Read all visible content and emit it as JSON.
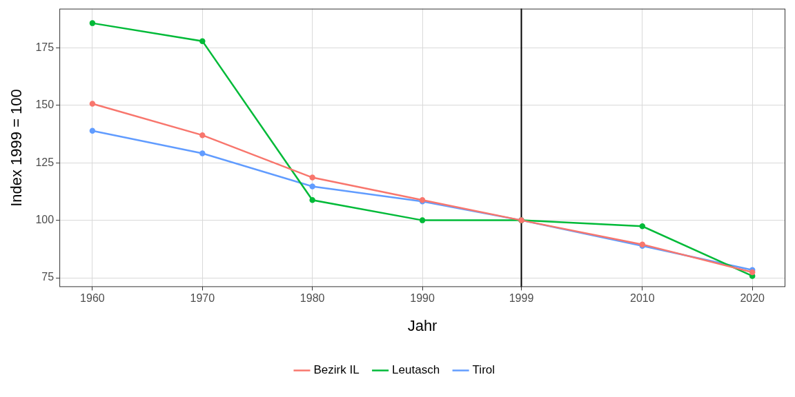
{
  "chart_data": {
    "type": "line",
    "x_label": "Jahr",
    "y_label": "Index 1999 = 100",
    "x": [
      1960,
      1970,
      1980,
      1990,
      1999,
      2010,
      2020
    ],
    "series": [
      {
        "name": "Bezirk IL",
        "color": "#F8766D",
        "values": [
          150.7,
          137.0,
          118.6,
          108.8,
          100,
          89.5,
          77.4
        ]
      },
      {
        "name": "Leutasch",
        "color": "#00BA38",
        "values": [
          185.7,
          177.9,
          108.8,
          100.0,
          100,
          97.4,
          75.8
        ]
      },
      {
        "name": "Tirol",
        "color": "#619CFF",
        "values": [
          138.9,
          129.1,
          114.7,
          108.2,
          100,
          88.9,
          78.4
        ]
      }
    ],
    "xlim": [
      1957,
      2023
    ],
    "xticks": [
      1960,
      1970,
      1980,
      1990,
      1999,
      2010,
      2020
    ],
    "ylim": [
      71,
      192
    ],
    "yticks": [
      75,
      100,
      125,
      150,
      175
    ],
    "grid": true,
    "legend": "bottom",
    "marker": "circle",
    "line_style": "solid",
    "reference_line": {
      "x": 1999,
      "color": "#000000"
    }
  }
}
